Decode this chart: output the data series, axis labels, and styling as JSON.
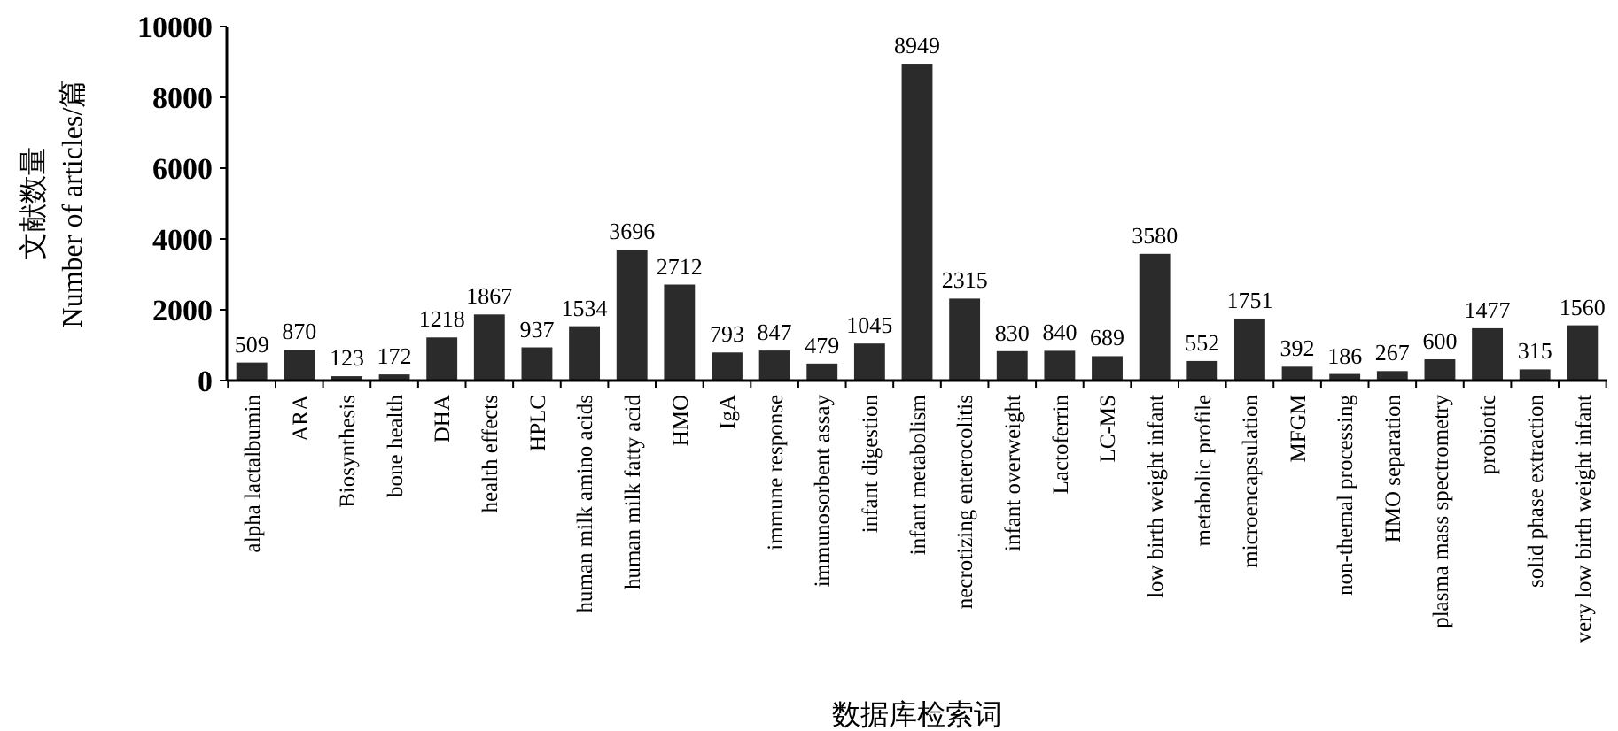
{
  "chart_data": {
    "type": "bar",
    "xlabel": "数据库检索词",
    "ylabel": "文献数量\nNumber of articles/篇",
    "categories": [
      "alpha lactalbumin",
      "ARA",
      "Biosynthesis",
      "bone health",
      "DHA",
      "health effects",
      "HPLC",
      "human milk amino acids",
      "human milk fatty acid",
      "HMO",
      "IgA",
      "immune response",
      "immunosorbent assay",
      "infant digestion",
      "infant metabolism",
      "necrotizing enterocolitis",
      "infant overweight",
      "Lactoferrin",
      "LC-MS",
      "low birth weight infant",
      "metabolic profile",
      "microencapsulation",
      "MFGM",
      "non-themal processing",
      "HMO separation",
      "plasma mass spectrometry",
      "probiotic",
      "solid phase extraction",
      "very low birth weight infant"
    ],
    "values": [
      509,
      870,
      123,
      172,
      1218,
      1867,
      937,
      1534,
      3696,
      2712,
      793,
      847,
      479,
      1045,
      8949,
      2315,
      830,
      840,
      689,
      3580,
      552,
      1751,
      392,
      186,
      267,
      600,
      1477,
      315,
      1560
    ],
    "color": "#2b2b2b",
    "ylim": [
      0,
      10000
    ],
    "yticks": [
      0,
      2000,
      4000,
      6000,
      8000,
      10000
    ],
    "data_labels": true,
    "grid": false
  }
}
